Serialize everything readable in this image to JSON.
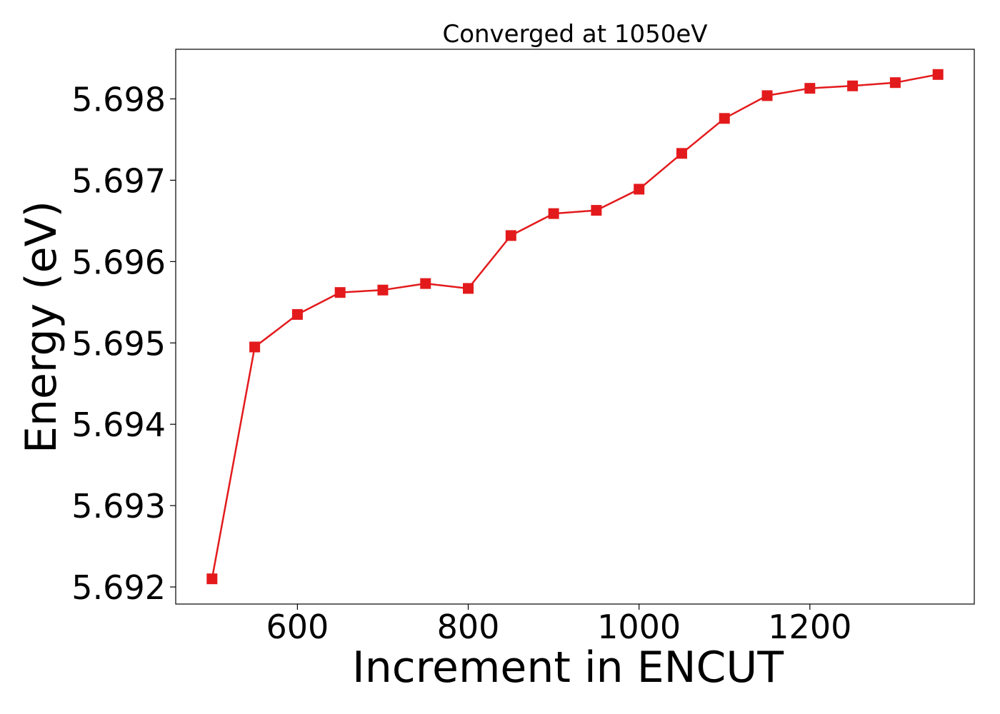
{
  "chart_data": {
    "type": "line",
    "title": "Converged at 1050eV",
    "xlabel": "Increment in ENCUT",
    "ylabel": "Energy (eV)",
    "x": [
      500,
      550,
      600,
      650,
      700,
      750,
      800,
      850,
      900,
      950,
      1000,
      1050,
      1100,
      1150,
      1200,
      1250,
      1300,
      1350
    ],
    "series": [
      {
        "values": [
          5.6921,
          5.69495,
          5.69535,
          5.69562,
          5.69565,
          5.69573,
          5.69567,
          5.69632,
          5.69659,
          5.69663,
          5.69689,
          5.69733,
          5.69776,
          5.69804,
          5.69813,
          5.69816,
          5.6982,
          5.6983
        ],
        "color": "#e31a1c",
        "marker": "square"
      }
    ],
    "xlim": [
      457.5,
      1392.5
    ],
    "ylim": [
      5.69179,
      5.69861
    ],
    "xticks": [
      "600",
      "800",
      "1000",
      "1200"
    ],
    "yticks": [
      "5.692",
      "5.693",
      "5.694",
      "5.695",
      "5.696",
      "5.697",
      "5.698"
    ],
    "grid": false
  }
}
